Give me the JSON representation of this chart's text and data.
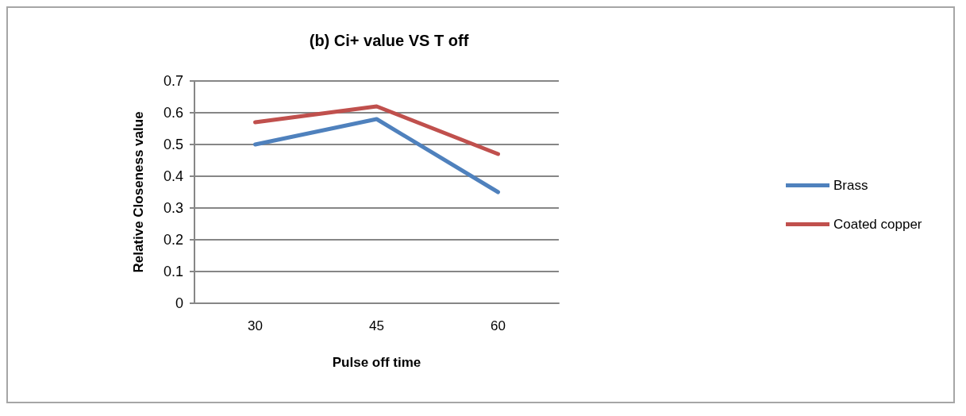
{
  "chart_data": {
    "type": "line",
    "title": "(b) Ci+ value VS T off",
    "xlabel": "Pulse off time",
    "ylabel": "Relative Closeness value",
    "categories": [
      "30",
      "45",
      "60"
    ],
    "series": [
      {
        "name": "Brass",
        "color": "#4f81bd",
        "values": [
          0.5,
          0.58,
          0.35
        ]
      },
      {
        "name": "Coated copper",
        "color": "#c0504d",
        "values": [
          0.57,
          0.62,
          0.47
        ]
      }
    ],
    "ylim": [
      0,
      0.7
    ],
    "yticks": [
      0,
      0.1,
      0.2,
      0.3,
      0.4,
      0.5,
      0.6,
      0.7
    ],
    "grid": "y",
    "legend": "right",
    "marker": "none",
    "line_style": "solid"
  }
}
